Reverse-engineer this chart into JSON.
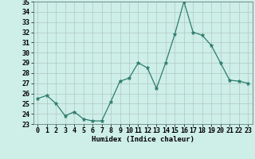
{
  "x": [
    0,
    1,
    2,
    3,
    4,
    5,
    6,
    7,
    8,
    9,
    10,
    11,
    12,
    13,
    14,
    15,
    16,
    17,
    18,
    19,
    20,
    21,
    22,
    23
  ],
  "y": [
    25.5,
    25.8,
    25.0,
    23.8,
    24.2,
    23.5,
    23.3,
    23.3,
    25.2,
    27.2,
    27.5,
    29.0,
    28.5,
    26.5,
    29.0,
    31.8,
    35.0,
    32.0,
    31.7,
    30.7,
    29.0,
    27.3,
    27.2,
    27.0
  ],
  "xlabel": "Humidex (Indice chaleur)",
  "ylabel": "",
  "xlim": [
    -0.5,
    23.5
  ],
  "ylim": [
    23,
    35
  ],
  "yticks": [
    23,
    24,
    25,
    26,
    27,
    28,
    29,
    30,
    31,
    32,
    33,
    34,
    35
  ],
  "xticks": [
    0,
    1,
    2,
    3,
    4,
    5,
    6,
    7,
    8,
    9,
    10,
    11,
    12,
    13,
    14,
    15,
    16,
    17,
    18,
    19,
    20,
    21,
    22,
    23
  ],
  "line_color": "#2d7d6e",
  "marker": "*",
  "marker_size": 3.5,
  "bg_color": "#ceeee8",
  "grid_color": "#b0c8c2",
  "label_fontsize": 6.5,
  "tick_fontsize": 6
}
